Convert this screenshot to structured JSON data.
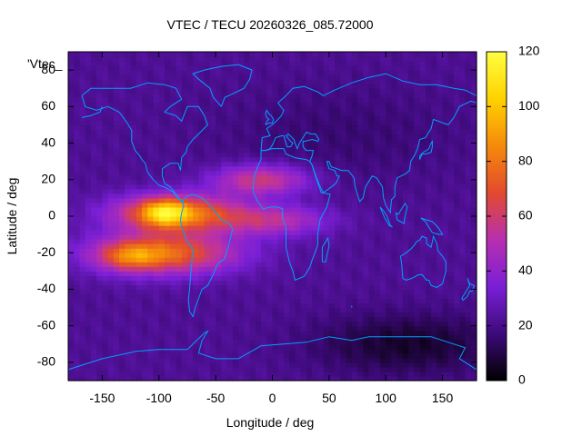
{
  "chart_data": {
    "type": "heatmap",
    "title": "VTEC / TECU 20260326_085.72000",
    "xlabel": "Longitude / deg",
    "ylabel": "Latitude / deg",
    "overlay_label": "'Vtec_",
    "xlim": [
      -180,
      180
    ],
    "ylim": [
      -90,
      90
    ],
    "x_ticks": [
      -150,
      -100,
      -50,
      0,
      50,
      100,
      150
    ],
    "y_ticks": [
      -80,
      -60,
      -40,
      -20,
      0,
      20,
      40,
      60,
      80
    ],
    "colorbar": {
      "range": [
        0,
        120
      ],
      "ticks": [
        0,
        20,
        40,
        60,
        80,
        100,
        120
      ],
      "colormap": [
        "#000000",
        "#3d0a7a",
        "#7a1fd6",
        "#b72fb0",
        "#e24a2e",
        "#f58a0b",
        "#ffd200",
        "#ffff40"
      ]
    },
    "field": {
      "background": 22,
      "features": [
        {
          "kind": "crest",
          "lon": -85,
          "lat": 2,
          "sig_lon": 38,
          "sig_lat": 7,
          "value": 62
        },
        {
          "kind": "crest",
          "lon": -95,
          "lat": -20,
          "sig_lon": 45,
          "sig_lat": 8,
          "value": 55
        },
        {
          "kind": "peak",
          "lon": -95,
          "lat": 2,
          "sig_lon": 14,
          "sig_lat": 5,
          "value": 38
        },
        {
          "kind": "peak",
          "lon": -125,
          "lat": -22,
          "sig_lon": 18,
          "sig_lat": 5,
          "value": 28
        },
        {
          "kind": "tail",
          "lon": -10,
          "lat": 20,
          "sig_lon": 30,
          "sig_lat": 6,
          "value": 38
        },
        {
          "kind": "tail",
          "lon": 0,
          "lat": -2,
          "sig_lon": 35,
          "sig_lat": 6,
          "value": 30
        },
        {
          "kind": "trough",
          "lon": 120,
          "lat": -70,
          "sig_lon": 60,
          "sig_lat": 12,
          "value": -16
        },
        {
          "kind": "trough",
          "lon": 60,
          "lat": 45,
          "sig_lon": 80,
          "sig_lat": 20,
          "value": -6
        }
      ]
    }
  }
}
